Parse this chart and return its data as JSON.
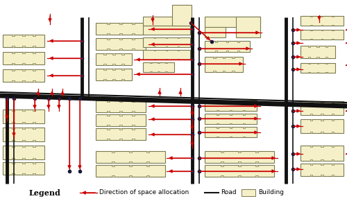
{
  "background_color": "#ffffff",
  "road_color": "#111111",
  "building_fill": "#f5f0c8",
  "building_edge": "#7a7a50",
  "arrow_color": "#cc0000",
  "dot_color": "#1a1a3a",
  "figsize": [
    5.0,
    2.9
  ],
  "dpi": 100,
  "legend_label_arrow": "Direction of space allocation",
  "legend_label_road": "Road",
  "legend_label_building": "Building"
}
